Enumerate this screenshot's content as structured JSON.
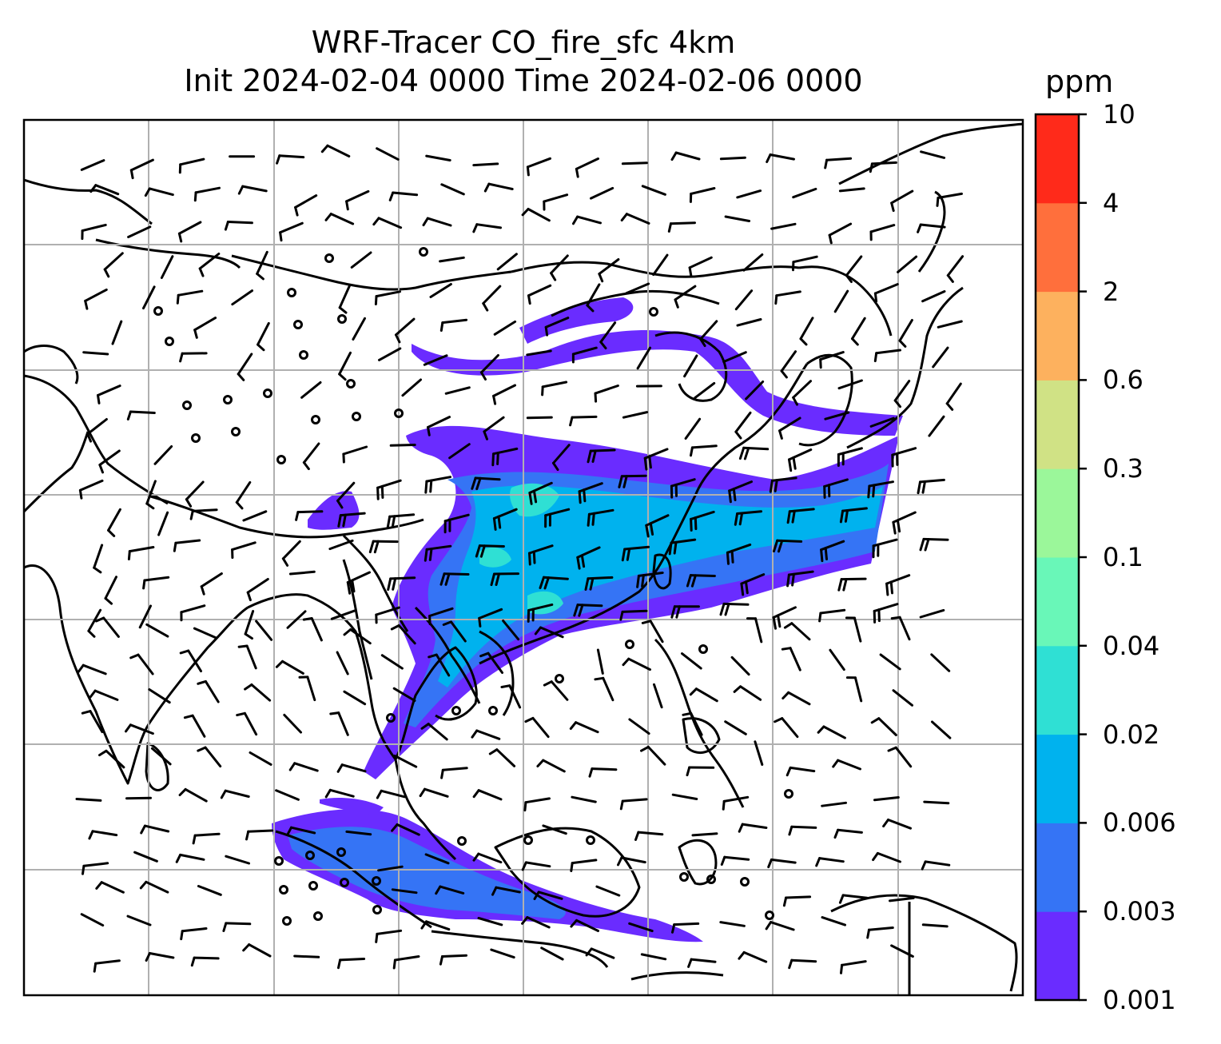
{
  "title": {
    "line1": "WRF-Tracer CO_fire_sfc 4km",
    "line2": "Init 2024-02-04 0000 Time 2024-02-06 0000"
  },
  "colorbar": {
    "unit": "ppm",
    "levels": [
      "0.001",
      "0.003",
      "0.006",
      "0.02",
      "0.04",
      "0.1",
      "0.3",
      "0.6",
      "2",
      "4",
      "10"
    ],
    "colors": [
      "#6a2cff",
      "#3574f5",
      "#00b2ee",
      "#2fe0d4",
      "#69f7b8",
      "#9bf79a",
      "#d0e285",
      "#fdb15e",
      "#ff6f3c",
      "#ff2a1a"
    ]
  },
  "map": {
    "palette": {
      "plume_low": "#6a2cff",
      "plume_mid": "#3574f5",
      "plume_high": "#00b2ee",
      "plume_peak": "#2fe0d4",
      "coast": "#000000",
      "grid": "#b0b0b0"
    },
    "icons": [
      "wind-barb-icon",
      "calm-circle-icon"
    ]
  }
}
